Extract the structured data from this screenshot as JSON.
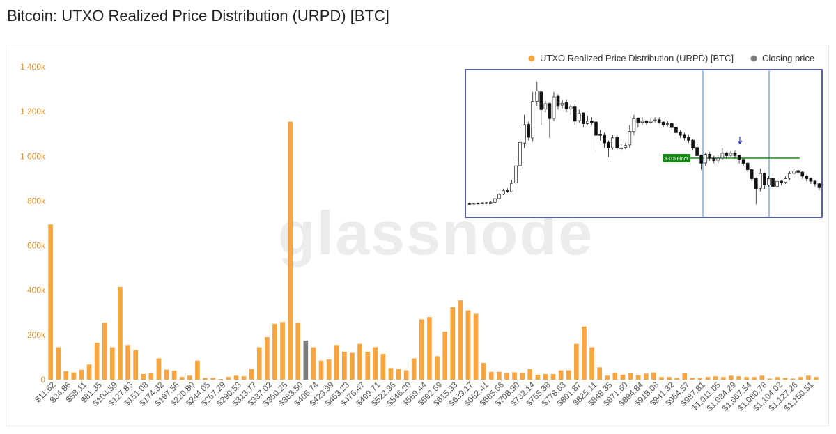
{
  "title": "Bitcoin: UTXO Realized Price Distribution (URPD) [BTC]",
  "watermark": "glassnode",
  "colors": {
    "bar": "#f7a541",
    "highlight": "#7d7d7d",
    "axis": "#e0962f",
    "inset_border": "#1f2a8a",
    "floor_line": "#1a8c1a",
    "floor_label_bg": "#138a13"
  },
  "legend": [
    {
      "label": "UTXO Realized Price Distribution (URPD) [BTC]",
      "color": "#f7a541"
    },
    {
      "label": "Closing price",
      "color": "#7d7d7d"
    }
  ],
  "inset": {
    "floor_label": "$315 Floor",
    "candles": [
      [
        8.6,
        8.0,
        9.6,
        7.4
      ],
      [
        8.2,
        8.8,
        9.4,
        7.6
      ],
      [
        8.9,
        8.5,
        9.5,
        7.8
      ],
      [
        8.5,
        9.2,
        9.8,
        8.0
      ],
      [
        9.3,
        8.7,
        9.9,
        8.0
      ],
      [
        8.6,
        9.5,
        10.5,
        8.2
      ],
      [
        9.6,
        12.4,
        13.0,
        9.2
      ],
      [
        12.6,
        15.8,
        16.5,
        12.0
      ],
      [
        15.8,
        18.6,
        19.8,
        15.2
      ],
      [
        18.8,
        18.2,
        20.5,
        17.0
      ],
      [
        18.0,
        24.4,
        27.0,
        17.6
      ],
      [
        24.8,
        38.0,
        43.0,
        23.0
      ],
      [
        38.5,
        56.4,
        70.0,
        35.0
      ],
      [
        56.0,
        70.2,
        78.0,
        52.0
      ],
      [
        70.5,
        60.4,
        72.5,
        58.0
      ],
      [
        60.0,
        88.4,
        96.0,
        57.0
      ],
      [
        88.6,
        96.6,
        104.0,
        85.0
      ],
      [
        96.0,
        82.0,
        97.0,
        70.0
      ],
      [
        82.5,
        86.6,
        89.0,
        80.0
      ],
      [
        86.8,
        75.0,
        87.5,
        60.0
      ],
      [
        75.2,
        92.0,
        96.0,
        73.0
      ],
      [
        92.5,
        85.0,
        94.0,
        82.0
      ],
      [
        85.5,
        87.0,
        89.5,
        83.0
      ],
      [
        87.5,
        82.5,
        90.0,
        80.0
      ],
      [
        82.6,
        84.4,
        86.0,
        78.0
      ],
      [
        84.6,
        73.0,
        86.5,
        70.0
      ],
      [
        73.5,
        79.0,
        82.0,
        72.0
      ],
      [
        79.5,
        71.0,
        80.0,
        68.0
      ],
      [
        71.0,
        73.0,
        77.0,
        70.0
      ],
      [
        73.2,
        72.0,
        76.0,
        70.0
      ],
      [
        72.5,
        62.0,
        73.0,
        50.0
      ],
      [
        62.5,
        62.0,
        66.0,
        58.0
      ],
      [
        62.0,
        56.0,
        64.0,
        52.0
      ],
      [
        56.5,
        52.0,
        58.0,
        45.0
      ],
      [
        52.2,
        60.0,
        62.0,
        51.0
      ],
      [
        60.5,
        52.0,
        62.0,
        50.0
      ],
      [
        52.0,
        52.0,
        55.0,
        50.0
      ],
      [
        52.5,
        54.0,
        56.0,
        51.0
      ],
      [
        54.5,
        65.0,
        70.0,
        52.0
      ],
      [
        65.0,
        75.0,
        78.0,
        62.0
      ],
      [
        75.5,
        72.0,
        76.0,
        68.0
      ],
      [
        72.0,
        73.0,
        76.0,
        70.0
      ],
      [
        73.2,
        72.0,
        74.0,
        70.0
      ],
      [
        72.2,
        73.0,
        75.0,
        71.0
      ],
      [
        73.5,
        74.0,
        76.0,
        72.0
      ],
      [
        74.2,
        72.0,
        76.0,
        71.0
      ],
      [
        72.3,
        70.0,
        73.0,
        68.0
      ],
      [
        70.5,
        71.0,
        73.0,
        69.0
      ],
      [
        71.2,
        68.0,
        72.0,
        66.0
      ],
      [
        68.2,
        64.0,
        70.0,
        62.0
      ],
      [
        64.5,
        62.0,
        66.0,
        60.0
      ],
      [
        62.2,
        60.0,
        64.0,
        58.0
      ],
      [
        60.5,
        58.0,
        62.0,
        56.0
      ],
      [
        58.2,
        52.0,
        59.0,
        50.0
      ],
      [
        52.5,
        46.0,
        55.0,
        42.0
      ],
      [
        46.5,
        40.0,
        47.0,
        35.0
      ],
      [
        40.3,
        47.0,
        48.5,
        38.0
      ],
      [
        47.2,
        44.0,
        49.0,
        42.0
      ],
      [
        44.2,
        42.0,
        46.0,
        40.0
      ],
      [
        42.5,
        44.0,
        46.0,
        40.0
      ],
      [
        44.2,
        48.0,
        52.0,
        43.0
      ],
      [
        48.2,
        46.0,
        49.0,
        44.0
      ],
      [
        46.3,
        48.0,
        49.5,
        45.0
      ],
      [
        48.2,
        46.0,
        50.0,
        44.0
      ],
      [
        46.2,
        43.0,
        47.0,
        40.0
      ],
      [
        43.2,
        40.0,
        44.0,
        38.0
      ],
      [
        40.2,
        35.0,
        41.0,
        33.0
      ],
      [
        35.2,
        28.0,
        36.0,
        26.0
      ],
      [
        28.2,
        20.0,
        29.0,
        8.0
      ],
      [
        20.5,
        32.0,
        36.0,
        18.0
      ],
      [
        32.0,
        23.0,
        33.0,
        20.0
      ],
      [
        23.2,
        28.0,
        30.0,
        22.0
      ],
      [
        28.2,
        22.0,
        29.0,
        20.0
      ],
      [
        22.2,
        26.0,
        28.0,
        21.0
      ],
      [
        26.2,
        25.0,
        27.0,
        23.0
      ],
      [
        25.3,
        28.0,
        30.0,
        24.0
      ],
      [
        28.3,
        32.0,
        34.0,
        27.0
      ],
      [
        32.2,
        34.0,
        36.0,
        31.0
      ],
      [
        34.4,
        33.0,
        35.0,
        31.0
      ],
      [
        33.2,
        30.0,
        34.0,
        28.0
      ],
      [
        30.2,
        28.0,
        31.0,
        26.0
      ],
      [
        28.3,
        26.0,
        29.0,
        24.0
      ],
      [
        26.2,
        24.0,
        27.0,
        22.0
      ],
      [
        24.2,
        21.0,
        25.0,
        19.0
      ]
    ]
  },
  "chart_data": {
    "type": "bar",
    "title": "Bitcoin: UTXO Realized Price Distribution (URPD) [BTC]",
    "ylim": [
      0,
      1400000
    ],
    "yticks": [
      0,
      200000,
      400000,
      600000,
      800000,
      1000000,
      1200000,
      1400000
    ],
    "ytick_labels": [
      "0",
      "200k",
      "400k",
      "600k",
      "800k",
      "1 000k",
      "1 200k",
      "1 400k"
    ],
    "xtick_labels": [
      "$11.62",
      "$34.86",
      "$58.11",
      "$81.35",
      "$104.59",
      "$127.83",
      "$151.08",
      "$174.32",
      "$197.56",
      "$220.80",
      "$244.05",
      "$267.29",
      "$290.53",
      "$313.77",
      "$337.02",
      "$360.26",
      "$383.50",
      "$406.74",
      "$429.99",
      "$453.23",
      "$476.47",
      "$499.71",
      "$522.96",
      "$546.20",
      "$569.44",
      "$592.69",
      "$615.93",
      "$639.17",
      "$662.41",
      "$685.66",
      "$708.90",
      "$732.14",
      "$755.38",
      "$778.63",
      "$801.87",
      "$825.11",
      "$848.35",
      "$871.60",
      "$894.84",
      "$918.08",
      "$941.32",
      "$964.57",
      "$987.81",
      "$1,011.05",
      "$1,034.29",
      "$1,057.54",
      "$1,080.78",
      "$1,104.02",
      "$1,127.26",
      "$1,150.51"
    ],
    "grid": false,
    "legend_position": "top-right",
    "highlight_index": 33,
    "values": [
      695000,
      145000,
      38000,
      32000,
      44000,
      68000,
      165000,
      255000,
      145000,
      415000,
      155000,
      133000,
      25000,
      28000,
      95000,
      45000,
      40000,
      12000,
      18000,
      85000,
      8000,
      8000,
      3000,
      12000,
      18000,
      15000,
      48000,
      145000,
      190000,
      250000,
      258000,
      1155000,
      255000,
      175000,
      145000,
      85000,
      90000,
      155000,
      125000,
      120000,
      160000,
      125000,
      145000,
      115000,
      52000,
      48000,
      42000,
      95000,
      270000,
      280000,
      105000,
      215000,
      325000,
      355000,
      310000,
      295000,
      75000,
      35000,
      35000,
      30000,
      33000,
      30000,
      48000,
      22000,
      25000,
      25000,
      42000,
      42000,
      160000,
      238000,
      145000,
      55000,
      18000,
      30000,
      22000,
      28000,
      20000,
      27000,
      32000,
      12000,
      12000,
      8000,
      28000,
      8000,
      8000,
      12000,
      15000,
      12000,
      18000,
      15000,
      12000,
      12000,
      18000,
      5000,
      12000,
      8000,
      5000,
      12000,
      18000,
      12000
    ]
  }
}
